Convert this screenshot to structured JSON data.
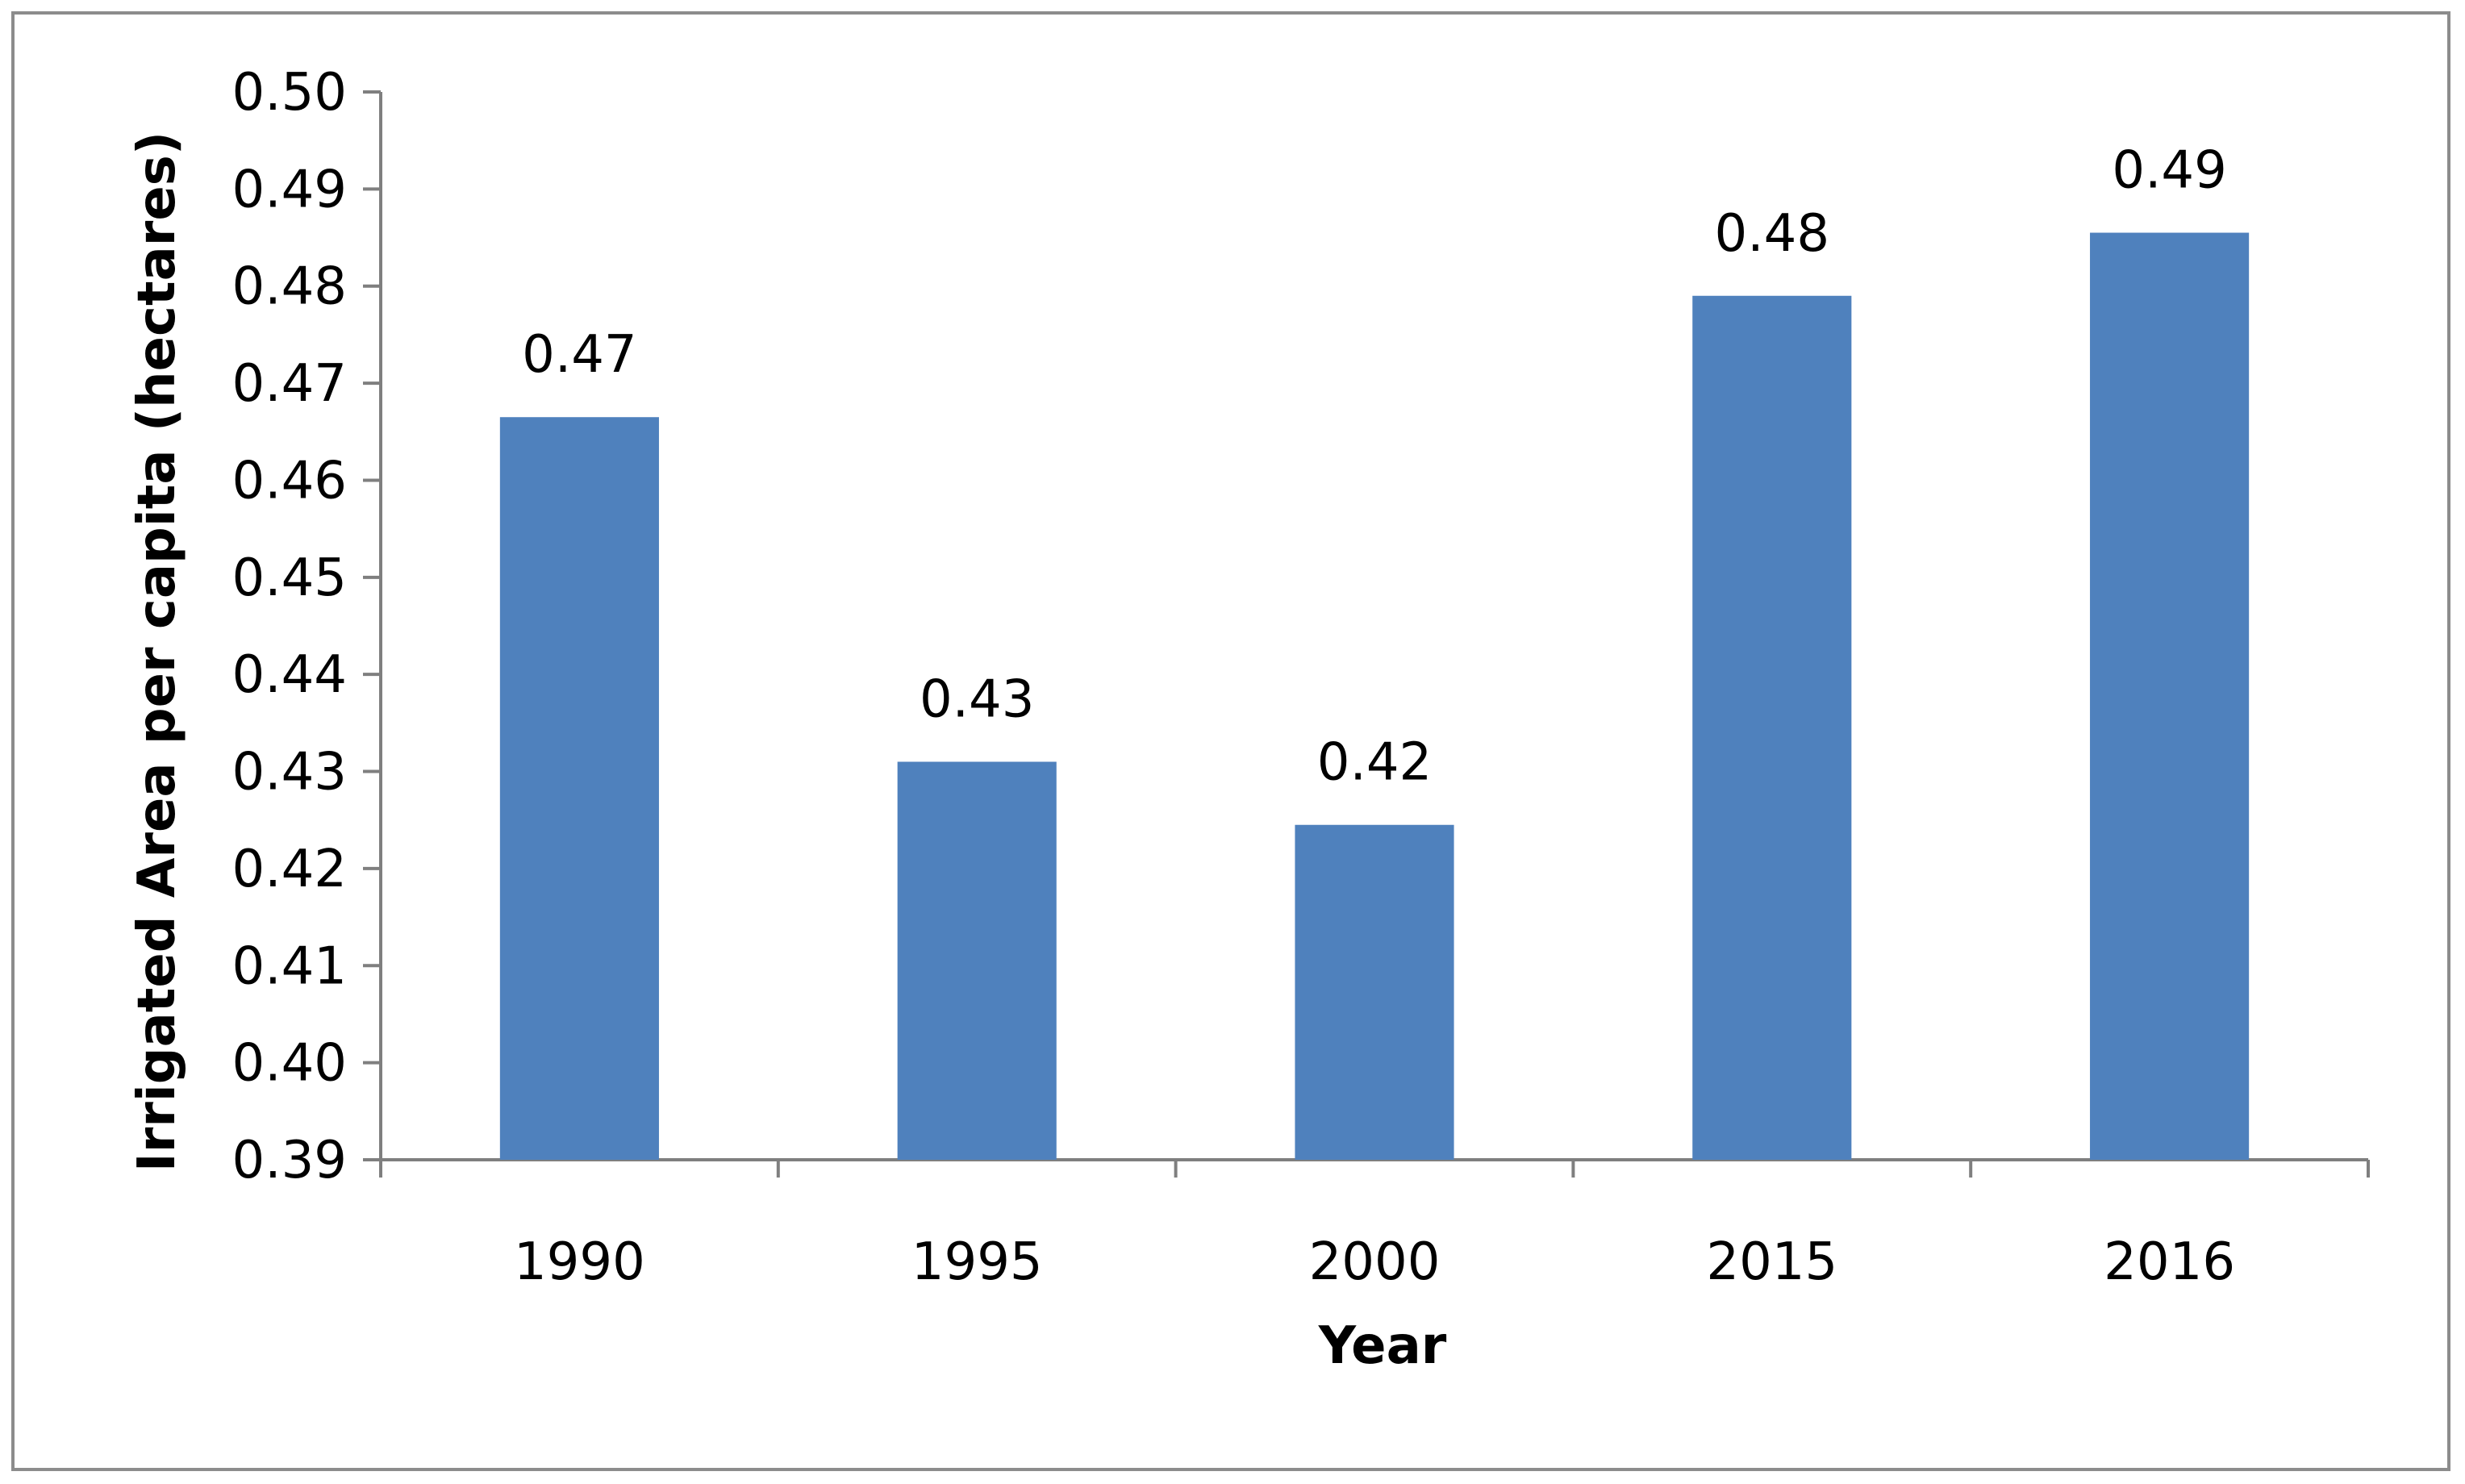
{
  "chart_data": {
    "type": "bar",
    "title": "",
    "xlabel": "Year",
    "ylabel": "Irrigated Area per capita (hectares)",
    "categories": [
      "1990",
      "1995",
      "2000",
      "2015",
      "2016"
    ],
    "values": [
      0.4665,
      0.431,
      0.4245,
      0.479,
      0.4855
    ],
    "data_labels": [
      "0.47",
      "0.43",
      "0.42",
      "0.48",
      "0.49"
    ],
    "ylim": [
      0.39,
      0.5
    ],
    "yticks": [
      "0.39",
      "0.40",
      "0.41",
      "0.42",
      "0.43",
      "0.44",
      "0.45",
      "0.46",
      "0.47",
      "0.48",
      "0.49",
      "0.50"
    ],
    "grid": false,
    "legend": "none",
    "bar_color": "#4f81bd",
    "axis_color": "#7f7f7f"
  }
}
